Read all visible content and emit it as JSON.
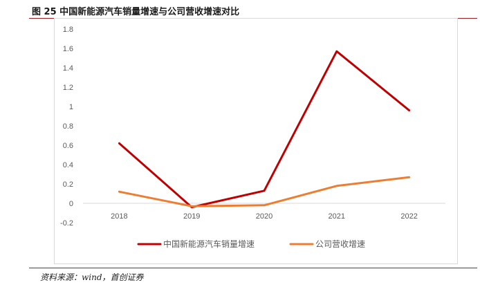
{
  "header": {
    "title": "图 25  中国新能源汽车销量增速与公司营收增速对比"
  },
  "footer": {
    "source": "资料来源：wind，首创证券"
  },
  "chart_data": {
    "type": "line",
    "title": "",
    "xlabel": "",
    "ylabel": "",
    "categories": [
      "2018",
      "2019",
      "2020",
      "2021",
      "2022"
    ],
    "ylim": [
      -0.2,
      1.8
    ],
    "yticks": [
      "1.8",
      "1.6",
      "1.4",
      "1.2",
      "1",
      "0.8",
      "0.6",
      "0.4",
      "0.2",
      "0",
      "-0.2"
    ],
    "grid": false,
    "legend_position": "bottom",
    "series": [
      {
        "name": "中国新能源汽车销量增速",
        "color": "#C00000",
        "values": [
          0.62,
          -0.04,
          0.13,
          1.57,
          0.96
        ]
      },
      {
        "name": "公司营收增速",
        "color": "#ED7D31",
        "values": [
          0.12,
          -0.03,
          -0.02,
          0.18,
          0.27
        ]
      }
    ]
  }
}
